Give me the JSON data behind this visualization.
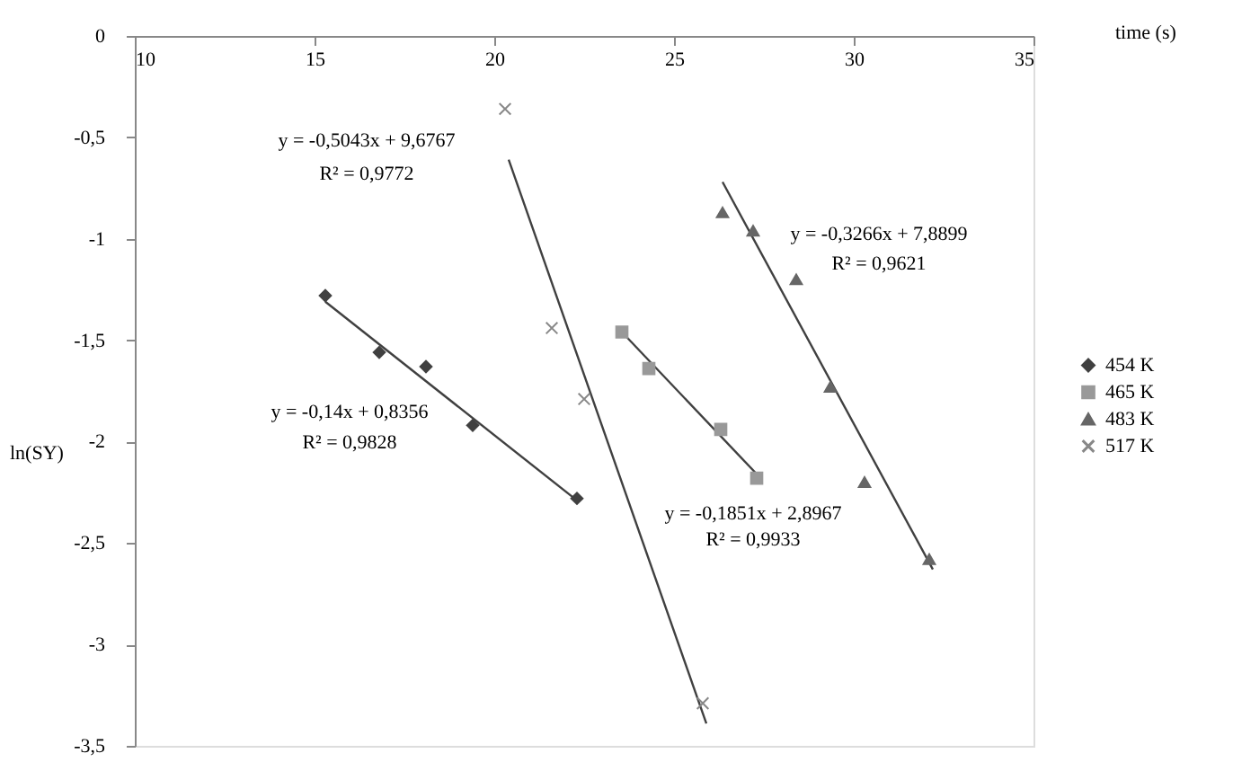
{
  "chart_data": {
    "type": "scatter",
    "xlabel": "time (s)",
    "ylabel": "ln(SY)",
    "xlim": [
      10,
      35
    ],
    "ylim": [
      -3.5,
      0
    ],
    "xticks": [
      10,
      15,
      20,
      25,
      30,
      35
    ],
    "yticks": [
      {
        "value": 0,
        "label": "0"
      },
      {
        "value": -0.5,
        "label": "-0,5"
      },
      {
        "value": -1,
        "label": "-1"
      },
      {
        "value": -1.5,
        "label": "-1,5"
      },
      {
        "value": -2,
        "label": "-2"
      },
      {
        "value": -2.5,
        "label": "-2,5"
      },
      {
        "value": -3,
        "label": "-3"
      },
      {
        "value": -3.5,
        "label": "-3,5"
      }
    ],
    "grid": false,
    "legend": "right",
    "series": [
      {
        "name": "454 K",
        "marker": "diamond",
        "color": "#404040",
        "x": [
          15.3,
          16.8,
          18.1,
          19.4,
          22.3
        ],
        "values": [
          -1.28,
          -1.56,
          -1.63,
          -1.92,
          -2.28
        ]
      },
      {
        "name": "465 K",
        "marker": "square",
        "color": "#999999",
        "x": [
          23.55,
          24.3,
          26.3,
          27.3
        ],
        "values": [
          -1.46,
          -1.64,
          -1.94,
          -2.18
        ]
      },
      {
        "name": "483 K",
        "marker": "triangle",
        "color": "#666666",
        "x": [
          26.35,
          27.2,
          28.4,
          29.35,
          30.3,
          32.1
        ],
        "values": [
          -0.87,
          -0.96,
          -1.2,
          -1.73,
          -2.2,
          -2.58
        ]
      },
      {
        "name": "517 K",
        "marker": "cross",
        "color": "#888888",
        "x": [
          20.3,
          21.6,
          22.5,
          25.8
        ],
        "values": [
          -0.36,
          -1.44,
          -1.79,
          -3.29
        ]
      },
      {
        "type": "line",
        "color": "#404040",
        "x": [
          15.3,
          22.3
        ],
        "values": [
          -1.31,
          -2.29
        ]
      },
      {
        "type": "line",
        "color": "#404040",
        "x": [
          23.55,
          27.3
        ],
        "values": [
          -1.46,
          -2.16
        ]
      },
      {
        "type": "line",
        "color": "#404040",
        "x": [
          26.35,
          32.2
        ],
        "values": [
          -0.72,
          -2.63
        ]
      },
      {
        "type": "line",
        "color": "#404040",
        "x": [
          20.4,
          25.9
        ],
        "values": [
          -0.61,
          -3.39
        ]
      }
    ],
    "annotations": [
      "y = -0,5043x + 9,6767",
      "R² = 0,9772",
      "y = -0,14x + 0,8356",
      "R² = 0,9828",
      "y = -0,3266x + 7,8899",
      "R² = 0,9621",
      "y = -0,1851x + 2,8967",
      "R² = 0,9933"
    ]
  }
}
